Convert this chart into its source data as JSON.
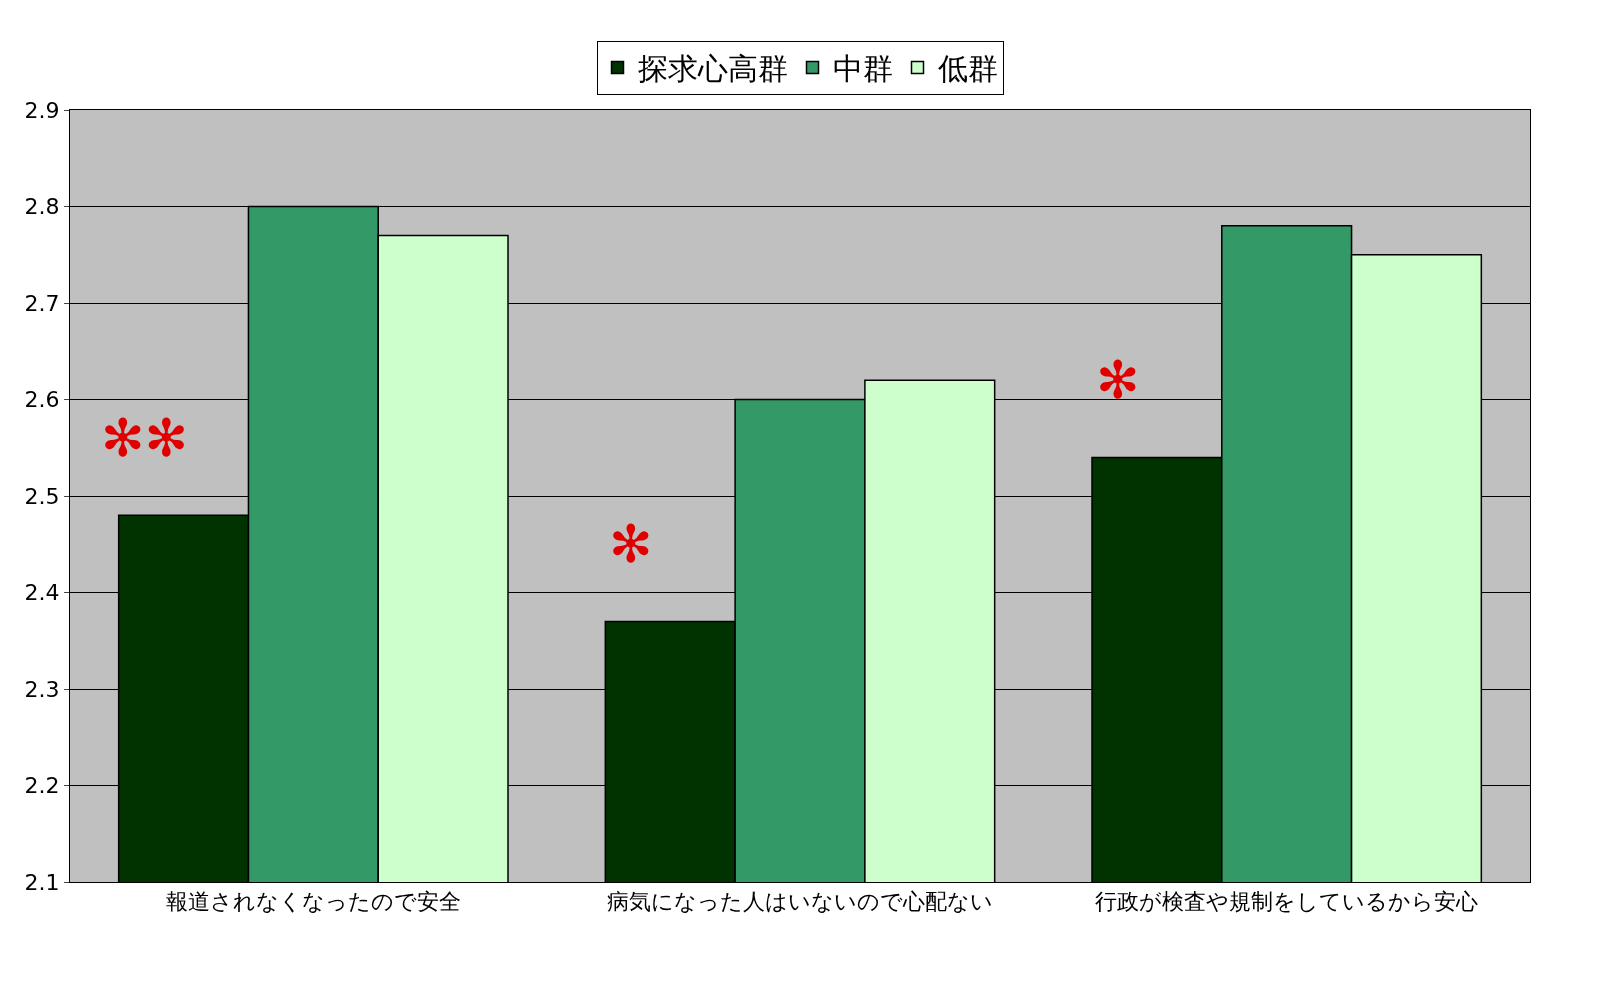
{
  "chart_data": {
    "type": "bar",
    "categories": [
      "報道されなくなったので安全",
      "病気になった人はいないので心配ない",
      "行政が検査や規制をしているから安心"
    ],
    "series": [
      {
        "name": "探求心高群",
        "color": "#003300",
        "values": [
          2.48,
          2.37,
          2.54
        ]
      },
      {
        "name": "中群",
        "color": "#339966",
        "values": [
          2.8,
          2.6,
          2.78
        ]
      },
      {
        "name": "低群",
        "color": "#ccffcc",
        "values": [
          2.77,
          2.62,
          2.75
        ]
      }
    ],
    "ylim": [
      2.1,
      2.9
    ],
    "yticks": [
      2.1,
      2.2,
      2.3,
      2.4,
      2.5,
      2.6,
      2.7,
      2.8,
      2.9
    ],
    "grid": "y",
    "legend": "top",
    "annotations": [
      "✻✻",
      "✻",
      "✻"
    ]
  }
}
